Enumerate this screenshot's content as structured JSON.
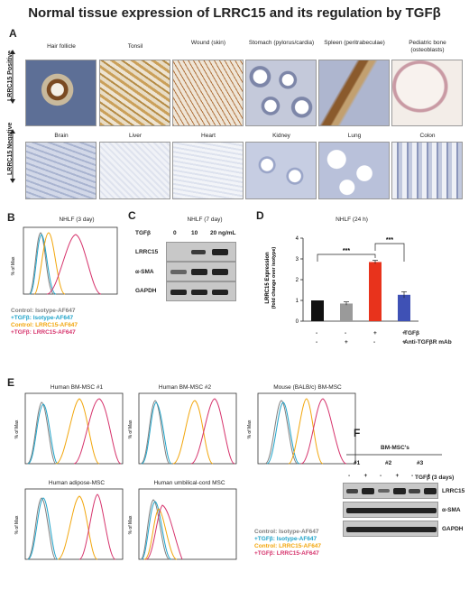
{
  "title": "Normal tissue expression of LRRC15 and its regulation by TGFβ",
  "panelA": {
    "label": "A",
    "positive_label": "LRRC15 Positive",
    "negative_label": "LRRC15 Negative",
    "positive": [
      {
        "name": "Hair follicle"
      },
      {
        "name": "Tonsil"
      },
      {
        "name": "Wound (skin)"
      },
      {
        "name": "Stomach (pylorus/cardia)"
      },
      {
        "name": "Spleen (peritrabeculae)"
      },
      {
        "name": "Pediatric bone (osteoblasts)"
      }
    ],
    "negative": [
      {
        "name": "Brain"
      },
      {
        "name": "Liver"
      },
      {
        "name": "Heart"
      },
      {
        "name": "Kidney"
      },
      {
        "name": "Lung"
      },
      {
        "name": "Colon"
      }
    ]
  },
  "panelB": {
    "label": "B",
    "title": "NHLF (3 day)",
    "legend": [
      {
        "text": "Control: Isotype-AF647",
        "color": "#7f7f7f"
      },
      {
        "text": "+TGFβ: Isotype-AF647",
        "color": "#1fa3c9"
      },
      {
        "text": "Control: LRRC15-AF647",
        "color": "#f2a60c"
      },
      {
        "text": "+TGFβ: LRRC15-AF647",
        "color": "#d6336c"
      }
    ]
  },
  "panelC": {
    "label": "C",
    "title": "NHLF (7 day)",
    "tgf_label": "TGFβ",
    "doses": [
      "0",
      "10",
      "20 ng/mL"
    ],
    "rows": [
      "LRRC15",
      "α-SMA",
      "GAPDH"
    ]
  },
  "panelD": {
    "label": "D",
    "title": "NHLF (24 h)",
    "ylabel": "LRRC15 Expression\n(fold change over isotype)",
    "sig1": "***",
    "sig2": "***",
    "tgf_row_label": "TGFβ",
    "ab_row_label": "Anti-TGFβR mAb",
    "tgf_row": [
      "-",
      "-",
      "+",
      "+"
    ],
    "ab_row": [
      "-",
      "+",
      "-",
      "+"
    ]
  },
  "chart_data": {
    "type": "bar",
    "title": "NHLF (24 h)",
    "categories": [
      "-/-",
      "-/+",
      "+/-",
      "+/+"
    ],
    "values": [
      1.0,
      0.85,
      2.85,
      1.27
    ],
    "errors": [
      0.0,
      0.08,
      0.08,
      0.15
    ],
    "colors": [
      "#111111",
      "#9a9a9a",
      "#e8331c",
      "#3f51b5"
    ],
    "ylim": [
      0,
      4
    ],
    "yticks": [
      "0",
      "1",
      "2",
      "3",
      "4"
    ],
    "ylabel": "LRRC15 Expression (fold change over isotype)"
  },
  "panelE": {
    "label": "E",
    "plots": [
      {
        "title": "Human BM-MSC #1"
      },
      {
        "title": "Human BM-MSC #2"
      },
      {
        "title": "Mouse (BALB/c) BM-MSC"
      },
      {
        "title": "Human adipose-MSC"
      },
      {
        "title": "Human umbilical-cord MSC"
      }
    ],
    "legend": [
      {
        "text": "Control: Isotype-AF647",
        "color": "#7f7f7f"
      },
      {
        "text": "+TGFβ: Isotype-AF647",
        "color": "#1fa3c9"
      },
      {
        "text": "Control: LRRC15-AF647",
        "color": "#f2a60c"
      },
      {
        "text": "+TGFβ: LRRC15-AF647",
        "color": "#d6336c"
      }
    ]
  },
  "panelF": {
    "label": "F",
    "header": "BM-MSC's",
    "groups": [
      "#1",
      "#2",
      "#3"
    ],
    "signs": [
      "-",
      "+",
      "-",
      "+",
      "-",
      "+"
    ],
    "tgf_label": "TGFβ (3 days)",
    "rows": [
      "LRRC15",
      "α-SMA",
      "GAPDH"
    ]
  },
  "hist_axis": {
    "ylabel": "% of Max"
  }
}
